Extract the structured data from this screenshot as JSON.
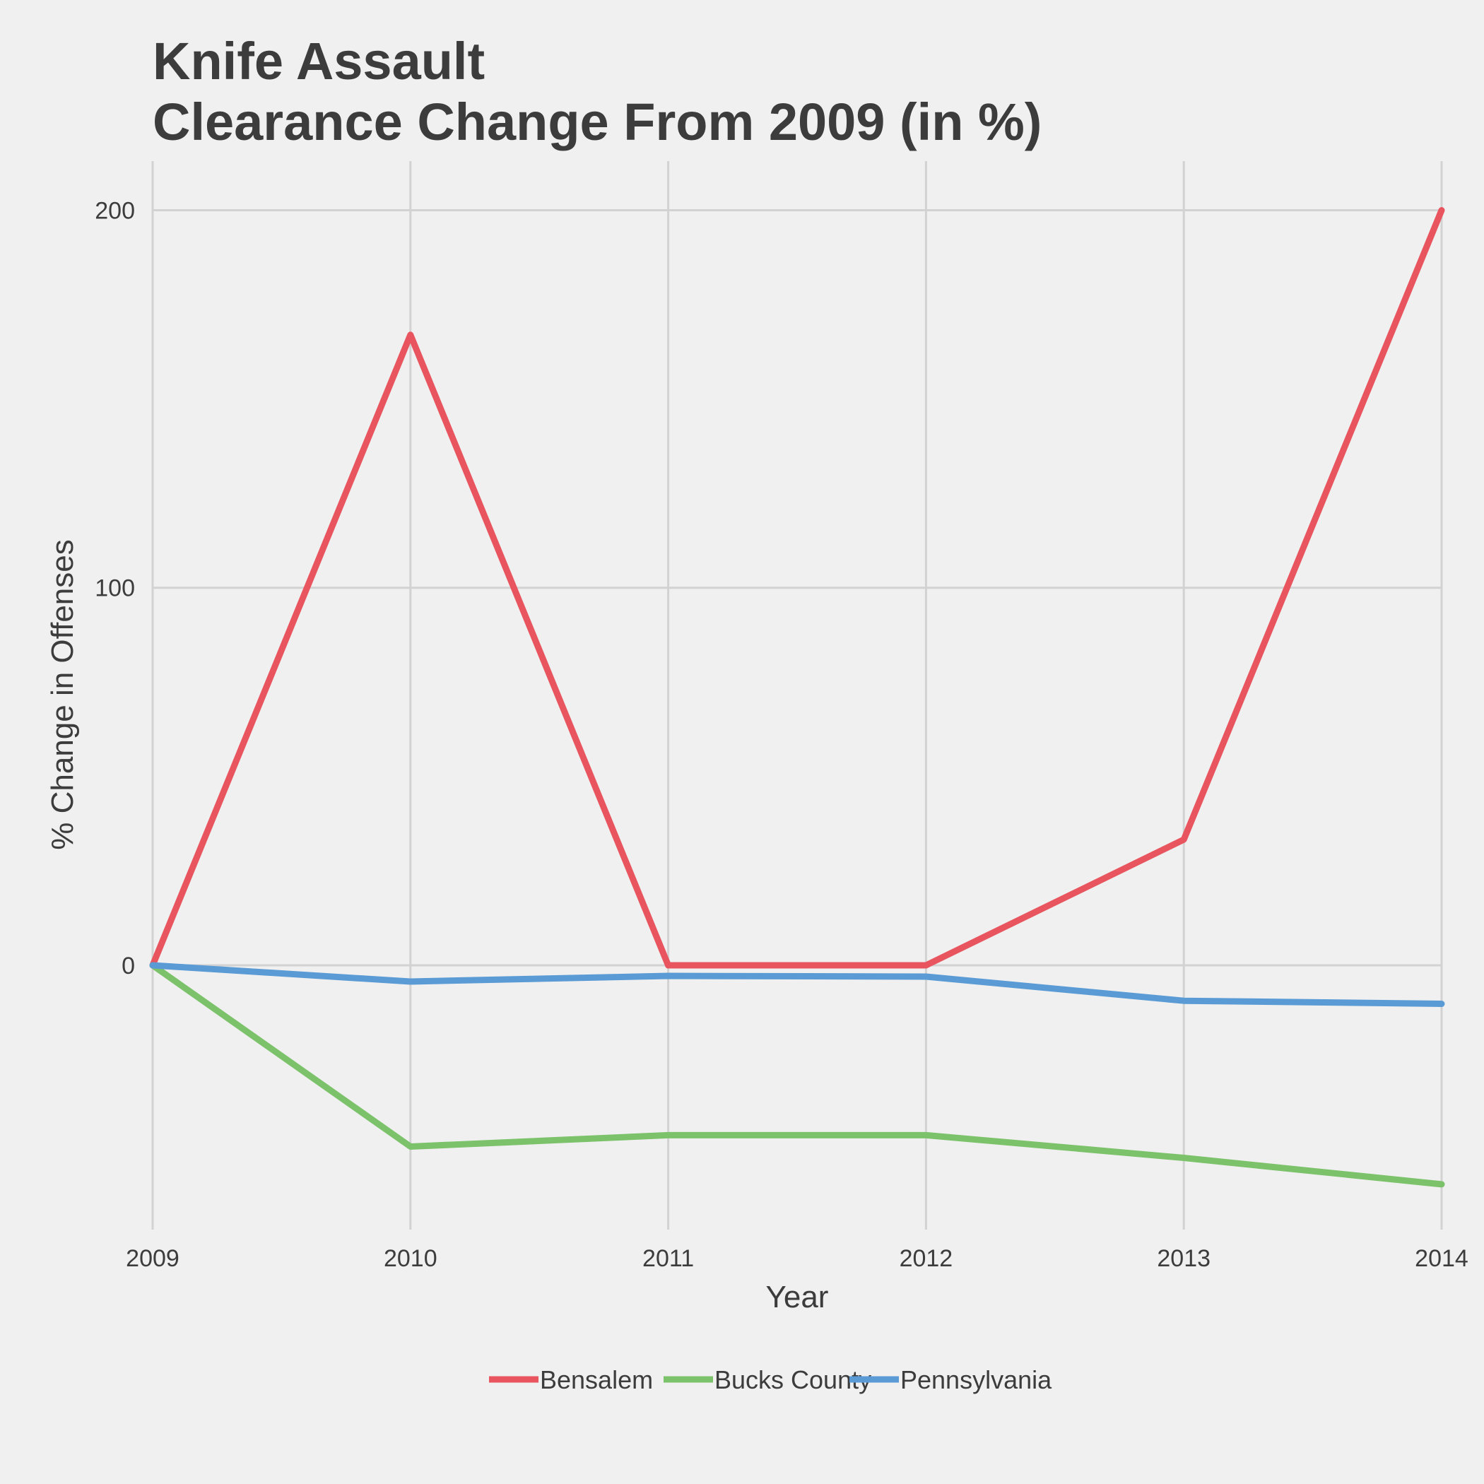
{
  "chart": {
    "title_line1": "Knife Assault",
    "title_line2": "Clearance Change From 2009 (in %)"
  },
  "chart_data": {
    "type": "line",
    "title": "Knife Assault\nClearance Change From 2009 (in %)",
    "xlabel": "Year",
    "ylabel": "% Change in Offenses",
    "x": [
      2009,
      2010,
      2011,
      2012,
      2013,
      2014
    ],
    "x_tick_labels": [
      "2009",
      "2010",
      "2011",
      "2012",
      "2013",
      "2014"
    ],
    "y_ticks": [
      0,
      100,
      200
    ],
    "y_tick_labels": [
      "0",
      "100",
      "200"
    ],
    "xlim": [
      2009,
      2014
    ],
    "ylim": [
      -70,
      213
    ],
    "grid": true,
    "legend_position": "bottom",
    "series": [
      {
        "name": "Bensalem",
        "color": "#e8555f",
        "values": [
          0,
          167,
          0,
          0,
          33.3,
          200
        ]
      },
      {
        "name": "Bucks County",
        "color": "#7cc26a",
        "values": [
          0,
          -48,
          -45,
          -45,
          -51,
          -58
        ]
      },
      {
        "name": "Pennsylvania",
        "color": "#5b9bd5",
        "values": [
          0,
          -4.3,
          -2.8,
          -3.0,
          -9.4,
          -10.2
        ]
      }
    ]
  }
}
